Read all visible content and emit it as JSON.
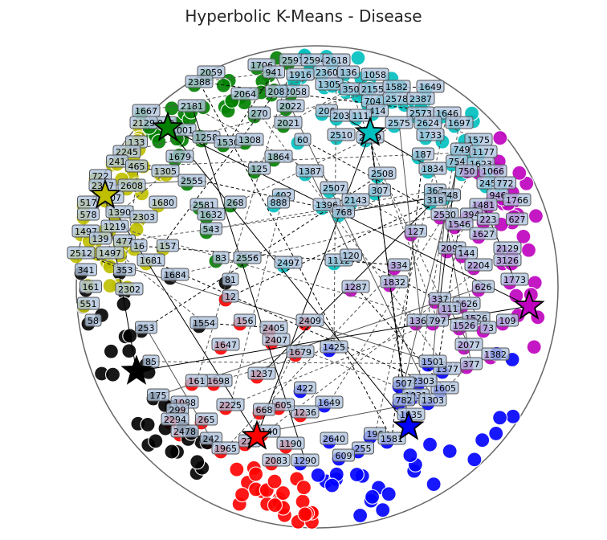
{
  "chart_data": {
    "type": "scatter",
    "title": "Hyperbolic K-Means - Disease",
    "xlabel": "",
    "ylabel": "",
    "xlim": [
      -1.0,
      1.0
    ],
    "ylim": [
      -1.0,
      1.0
    ],
    "grid": false,
    "legend": "none",
    "clusters": [
      {
        "color": "#008000",
        "centroid": [
          -0.62,
          0.66
        ]
      },
      {
        "color": "#00BFBF",
        "centroid": [
          0.22,
          0.64
        ]
      },
      {
        "color": "#BFBF00",
        "centroid": [
          -0.88,
          0.38
        ]
      },
      {
        "color": "#BF00BF",
        "centroid": [
          0.88,
          -0.08
        ]
      },
      {
        "color": "#0000FF",
        "centroid": [
          0.38,
          -0.58
        ]
      },
      {
        "color": "#FF0000",
        "centroid": [
          -0.25,
          -0.62
        ]
      },
      {
        "color": "#000000",
        "centroid": [
          -0.75,
          -0.35
        ]
      }
    ],
    "point_labels": [
      {
        "text": "2591",
        "x": -0.1,
        "y": 0.94,
        "c": 0
      },
      {
        "text": "2594",
        "x": -0.01,
        "y": 0.94,
        "c": 0
      },
      {
        "text": "2618",
        "x": 0.08,
        "y": 0.94,
        "c": 1
      },
      {
        "text": "1706",
        "x": -0.23,
        "y": 0.92,
        "c": 0
      },
      {
        "text": "2360",
        "x": 0.04,
        "y": 0.89,
        "c": 1
      },
      {
        "text": "136",
        "x": 0.13,
        "y": 0.89,
        "c": 1
      },
      {
        "text": "1058",
        "x": 0.24,
        "y": 0.88,
        "c": 1
      },
      {
        "text": "1916",
        "x": -0.07,
        "y": 0.88,
        "c": 0
      },
      {
        "text": "941",
        "x": -0.18,
        "y": 0.89,
        "c": 0
      },
      {
        "text": "2059",
        "x": -0.44,
        "y": 0.89,
        "c": 0
      },
      {
        "text": "2388",
        "x": -0.49,
        "y": 0.85,
        "c": 0
      },
      {
        "text": "1305",
        "x": 0.05,
        "y": 0.84,
        "c": 1
      },
      {
        "text": "350",
        "x": 0.14,
        "y": 0.82,
        "c": 1
      },
      {
        "text": "2155",
        "x": 0.23,
        "y": 0.82,
        "c": 1
      },
      {
        "text": "1582",
        "x": 0.33,
        "y": 0.83,
        "c": 1
      },
      {
        "text": "1649",
        "x": 0.47,
        "y": 0.83,
        "c": 1
      },
      {
        "text": "2058",
        "x": -0.09,
        "y": 0.81,
        "c": 0
      },
      {
        "text": "208",
        "x": -0.17,
        "y": 0.81,
        "c": 0
      },
      {
        "text": "2064",
        "x": -0.3,
        "y": 0.8,
        "c": 0
      },
      {
        "text": "2578",
        "x": 0.33,
        "y": 0.78,
        "c": 1
      },
      {
        "text": "2387",
        "x": 0.43,
        "y": 0.78,
        "c": 1
      },
      {
        "text": "704",
        "x": 0.23,
        "y": 0.77,
        "c": 1
      },
      {
        "text": "414",
        "x": 0.25,
        "y": 0.73,
        "c": 1
      },
      {
        "text": "2573",
        "x": 0.43,
        "y": 0.72,
        "c": 1
      },
      {
        "text": "1646",
        "x": 0.54,
        "y": 0.72,
        "c": 1
      },
      {
        "text": "2022",
        "x": -0.11,
        "y": 0.75,
        "c": 0
      },
      {
        "text": "206",
        "x": 0.04,
        "y": 0.73,
        "c": 1
      },
      {
        "text": "203",
        "x": 0.1,
        "y": 0.71,
        "c": 1
      },
      {
        "text": "111",
        "x": 0.18,
        "y": 0.71,
        "c": 1
      },
      {
        "text": "2575",
        "x": 0.34,
        "y": 0.68,
        "c": 1
      },
      {
        "text": "2624",
        "x": 0.46,
        "y": 0.68,
        "c": 1
      },
      {
        "text": "1697",
        "x": 0.59,
        "y": 0.68,
        "c": 1
      },
      {
        "text": "270",
        "x": -0.24,
        "y": 0.72,
        "c": 0
      },
      {
        "text": "2021",
        "x": -0.12,
        "y": 0.68,
        "c": 0
      },
      {
        "text": "1733",
        "x": 0.47,
        "y": 0.63,
        "c": 1
      },
      {
        "text": "2510",
        "x": 0.1,
        "y": 0.63,
        "c": 1
      },
      {
        "text": "2509",
        "x": 0.22,
        "y": 0.62,
        "c": 1
      },
      {
        "text": "1575",
        "x": 0.67,
        "y": 0.61,
        "c": 1
      },
      {
        "text": "1667",
        "x": -0.71,
        "y": 0.73,
        "c": 0
      },
      {
        "text": "2181",
        "x": -0.52,
        "y": 0.75,
        "c": 0
      },
      {
        "text": "1001",
        "x": -0.56,
        "y": 0.65,
        "c": 0
      },
      {
        "text": "2009",
        "x": -0.64,
        "y": 0.68,
        "c": 0
      },
      {
        "text": "2129",
        "x": -0.72,
        "y": 0.68,
        "c": 2
      },
      {
        "text": "1258",
        "x": -0.46,
        "y": 0.62,
        "c": 0
      },
      {
        "text": "1530",
        "x": -0.37,
        "y": 0.6,
        "c": 0
      },
      {
        "text": "1308",
        "x": -0.28,
        "y": 0.61,
        "c": 0
      },
      {
        "text": "60",
        "x": -0.06,
        "y": 0.61,
        "c": 1
      },
      {
        "text": "749",
        "x": 0.6,
        "y": 0.57,
        "c": 1
      },
      {
        "text": "1177",
        "x": 0.69,
        "y": 0.56,
        "c": 1
      },
      {
        "text": "133",
        "x": -0.75,
        "y": 0.6,
        "c": 2
      },
      {
        "text": "2245",
        "x": -0.79,
        "y": 0.56,
        "c": 2
      },
      {
        "text": "1679",
        "x": -0.57,
        "y": 0.54,
        "c": 0
      },
      {
        "text": "1864",
        "x": -0.16,
        "y": 0.54,
        "c": 0
      },
      {
        "text": "187",
        "x": 0.44,
        "y": 0.55,
        "c": 1
      },
      {
        "text": "754",
        "x": 0.58,
        "y": 0.52,
        "c": 1
      },
      {
        "text": "1623",
        "x": 0.68,
        "y": 0.51,
        "c": 1
      },
      {
        "text": "241",
        "x": -0.83,
        "y": 0.52,
        "c": 2
      },
      {
        "text": "465",
        "x": -0.75,
        "y": 0.5,
        "c": 2
      },
      {
        "text": "1305",
        "x": -0.63,
        "y": 0.48,
        "c": 2
      },
      {
        "text": "125",
        "x": -0.24,
        "y": 0.49,
        "c": 0
      },
      {
        "text": "1387",
        "x": -0.03,
        "y": 0.48,
        "c": 1
      },
      {
        "text": "2508",
        "x": 0.27,
        "y": 0.47,
        "c": 1
      },
      {
        "text": "1834",
        "x": 0.48,
        "y": 0.49,
        "c": 1
      },
      {
        "text": "750",
        "x": 0.62,
        "y": 0.48,
        "c": 1
      },
      {
        "text": "1066",
        "x": 0.73,
        "y": 0.48,
        "c": 1
      },
      {
        "text": "722",
        "x": -0.9,
        "y": 0.46,
        "c": 2
      },
      {
        "text": "2347",
        "x": -0.89,
        "y": 0.42,
        "c": 2
      },
      {
        "text": "2608",
        "x": -0.77,
        "y": 0.42,
        "c": 2
      },
      {
        "text": "2555",
        "x": -0.52,
        "y": 0.44,
        "c": 0
      },
      {
        "text": "2507",
        "x": 0.07,
        "y": 0.41,
        "c": 1
      },
      {
        "text": "307",
        "x": 0.26,
        "y": 0.4,
        "c": 1
      },
      {
        "text": "2451",
        "x": 0.72,
        "y": 0.43,
        "c": 1
      },
      {
        "text": "772",
        "x": 0.78,
        "y": 0.43,
        "c": 1
      },
      {
        "text": "367",
        "x": 0.49,
        "y": 0.4,
        "c": 1
      },
      {
        "text": "748",
        "x": 0.55,
        "y": 0.38,
        "c": 1
      },
      {
        "text": "946",
        "x": 0.75,
        "y": 0.38,
        "c": 3
      },
      {
        "text": "1766",
        "x": 0.83,
        "y": 0.36,
        "c": 3
      },
      {
        "text": "402",
        "x": -0.14,
        "y": 0.38,
        "c": 1
      },
      {
        "text": "888",
        "x": -0.16,
        "y": 0.35,
        "c": 1
      },
      {
        "text": "1396",
        "x": 0.04,
        "y": 0.34,
        "c": 1
      },
      {
        "text": "2143",
        "x": 0.16,
        "y": 0.36,
        "c": 1
      },
      {
        "text": "318",
        "x": 0.49,
        "y": 0.36,
        "c": 1
      },
      {
        "text": "1481",
        "x": 0.69,
        "y": 0.34,
        "c": 3
      },
      {
        "text": "517",
        "x": -0.95,
        "y": 0.35,
        "c": 2
      },
      {
        "text": "2607",
        "x": -0.86,
        "y": 0.37,
        "c": 2
      },
      {
        "text": "1680",
        "x": -0.64,
        "y": 0.35,
        "c": 2
      },
      {
        "text": "2581",
        "x": -0.47,
        "y": 0.34,
        "c": 0
      },
      {
        "text": "268",
        "x": -0.34,
        "y": 0.35,
        "c": 0
      },
      {
        "text": "768",
        "x": 0.11,
        "y": 0.31,
        "c": 1
      },
      {
        "text": "2530",
        "x": 0.53,
        "y": 0.3,
        "c": 3
      },
      {
        "text": "394",
        "x": 0.64,
        "y": 0.3,
        "c": 3
      },
      {
        "text": "578",
        "x": -0.95,
        "y": 0.3,
        "c": 2
      },
      {
        "text": "1390",
        "x": -0.82,
        "y": 0.31,
        "c": 2
      },
      {
        "text": "2303",
        "x": -0.72,
        "y": 0.29,
        "c": 2
      },
      {
        "text": "1632",
        "x": -0.44,
        "y": 0.3,
        "c": 0
      },
      {
        "text": "1546",
        "x": 0.59,
        "y": 0.26,
        "c": 3
      },
      {
        "text": "223",
        "x": 0.71,
        "y": 0.28,
        "c": 3
      },
      {
        "text": "627",
        "x": 0.83,
        "y": 0.28,
        "c": 3
      },
      {
        "text": "1219",
        "x": -0.84,
        "y": 0.25,
        "c": 2
      },
      {
        "text": "543",
        "x": -0.44,
        "y": 0.24,
        "c": 0
      },
      {
        "text": "127",
        "x": 0.41,
        "y": 0.23,
        "c": 3
      },
      {
        "text": "1627",
        "x": 0.69,
        "y": 0.22,
        "c": 3
      },
      {
        "text": "1497",
        "x": -0.96,
        "y": 0.23,
        "c": 2
      },
      {
        "text": "139",
        "x": -0.9,
        "y": 0.2,
        "c": 2
      },
      {
        "text": "477",
        "x": -0.8,
        "y": 0.19,
        "c": 2
      },
      {
        "text": "16",
        "x": -0.74,
        "y": 0.17,
        "c": 2
      },
      {
        "text": "157",
        "x": -0.62,
        "y": 0.17,
        "c": 2
      },
      {
        "text": "2092",
        "x": 0.56,
        "y": 0.16,
        "c": 3
      },
      {
        "text": "144",
        "x": 0.62,
        "y": 0.14,
        "c": 3
      },
      {
        "text": "2129",
        "x": 0.79,
        "y": 0.16,
        "c": 3
      },
      {
        "text": "2512",
        "x": -0.98,
        "y": 0.14,
        "c": 2
      },
      {
        "text": "1497",
        "x": -0.86,
        "y": 0.14,
        "c": 2
      },
      {
        "text": "2556",
        "x": -0.29,
        "y": 0.12,
        "c": 0
      },
      {
        "text": "83",
        "x": -0.4,
        "y": 0.12,
        "c": 0
      },
      {
        "text": "1112",
        "x": 0.09,
        "y": 0.11,
        "c": 1
      },
      {
        "text": "120",
        "x": 0.14,
        "y": 0.13,
        "c": 1
      },
      {
        "text": "2497",
        "x": -0.12,
        "y": 0.1,
        "c": 1
      },
      {
        "text": "334",
        "x": 0.34,
        "y": 0.09,
        "c": 3
      },
      {
        "text": "2204",
        "x": 0.67,
        "y": 0.09,
        "c": 3
      },
      {
        "text": "3126",
        "x": 0.79,
        "y": 0.11,
        "c": 3
      },
      {
        "text": "1681",
        "x": -0.69,
        "y": 0.11,
        "c": 2
      },
      {
        "text": "341",
        "x": -0.96,
        "y": 0.07,
        "c": 6
      },
      {
        "text": "353",
        "x": -0.8,
        "y": 0.07,
        "c": 6
      },
      {
        "text": "1684",
        "x": -0.59,
        "y": 0.05,
        "c": 6
      },
      {
        "text": "1773",
        "x": 0.82,
        "y": 0.03,
        "c": 3
      },
      {
        "text": "1832",
        "x": 0.32,
        "y": 0.02,
        "c": 3
      },
      {
        "text": "1287",
        "x": 0.16,
        "y": 0.0,
        "c": 3
      },
      {
        "text": "161",
        "x": -0.94,
        "y": 0.0,
        "c": 6
      },
      {
        "text": "2302",
        "x": -0.78,
        "y": -0.01,
        "c": 6
      },
      {
        "text": "81",
        "x": -0.36,
        "y": 0.03,
        "c": 6
      },
      {
        "text": "626",
        "x": 0.69,
        "y": 0.0,
        "c": 3
      },
      {
        "text": "1626",
        "x": 0.62,
        "y": -0.07,
        "c": 3
      },
      {
        "text": "337",
        "x": 0.51,
        "y": -0.05,
        "c": 3
      },
      {
        "text": "551",
        "x": -0.95,
        "y": -0.07,
        "c": 6
      },
      {
        "text": "12",
        "x": -0.36,
        "y": -0.04,
        "c": 5
      },
      {
        "text": "111",
        "x": 0.55,
        "y": -0.09,
        "c": 3
      },
      {
        "text": "1526",
        "x": 0.66,
        "y": -0.13,
        "c": 3
      },
      {
        "text": "109",
        "x": 0.79,
        "y": -0.14,
        "c": 3
      },
      {
        "text": "1369",
        "x": 0.43,
        "y": -0.14,
        "c": 3
      },
      {
        "text": "797",
        "x": 0.5,
        "y": -0.14,
        "c": 3
      },
      {
        "text": "1526",
        "x": 0.61,
        "y": -0.16,
        "c": 3
      },
      {
        "text": "73",
        "x": 0.71,
        "y": -0.17,
        "c": 3
      },
      {
        "text": "58",
        "x": -0.93,
        "y": -0.14,
        "c": 6
      },
      {
        "text": "156",
        "x": -0.3,
        "y": -0.14,
        "c": 5
      },
      {
        "text": "1554",
        "x": -0.47,
        "y": -0.15,
        "c": 6
      },
      {
        "text": "2405",
        "x": -0.18,
        "y": -0.17,
        "c": 5
      },
      {
        "text": "2409",
        "x": -0.03,
        "y": -0.14,
        "c": 5
      },
      {
        "text": "253",
        "x": -0.71,
        "y": -0.17,
        "c": 6
      },
      {
        "text": "2077",
        "x": 0.63,
        "y": -0.24,
        "c": 3
      },
      {
        "text": "1382",
        "x": 0.74,
        "y": -0.28,
        "c": 3
      },
      {
        "text": "1647",
        "x": -0.38,
        "y": -0.24,
        "c": 5
      },
      {
        "text": "2407",
        "x": -0.17,
        "y": -0.22,
        "c": 5
      },
      {
        "text": "1425",
        "x": 0.07,
        "y": -0.25,
        "c": 4
      },
      {
        "text": "1679",
        "x": -0.07,
        "y": -0.27,
        "c": 5
      },
      {
        "text": "1377",
        "x": 0.54,
        "y": -0.34,
        "c": 4
      },
      {
        "text": "1501",
        "x": 0.48,
        "y": -0.31,
        "c": 4
      },
      {
        "text": "377",
        "x": 0.64,
        "y": -0.32,
        "c": 3
      },
      {
        "text": "85",
        "x": -0.69,
        "y": -0.31,
        "c": 6
      },
      {
        "text": "1237",
        "x": -0.23,
        "y": -0.36,
        "c": 5
      },
      {
        "text": "1698",
        "x": -0.41,
        "y": -0.39,
        "c": 5
      },
      {
        "text": "161",
        "x": -0.5,
        "y": -0.39,
        "c": 5
      },
      {
        "text": "422",
        "x": -0.05,
        "y": -0.42,
        "c": 4
      },
      {
        "text": "1605",
        "x": 0.53,
        "y": -0.42,
        "c": 4
      },
      {
        "text": "2303",
        "x": 0.44,
        "y": -0.39,
        "c": 4
      },
      {
        "text": "507",
        "x": 0.36,
        "y": -0.4,
        "c": 4
      },
      {
        "text": "1031",
        "x": 0.41,
        "y": -0.45,
        "c": 4
      },
      {
        "text": "1303",
        "x": 0.48,
        "y": -0.47,
        "c": 4
      },
      {
        "text": "175",
        "x": -0.66,
        "y": -0.45,
        "c": 6
      },
      {
        "text": "1088",
        "x": -0.55,
        "y": -0.48,
        "c": 5
      },
      {
        "text": "1649",
        "x": 0.05,
        "y": -0.48,
        "c": 4
      },
      {
        "text": "782",
        "x": 0.36,
        "y": -0.47,
        "c": 4
      },
      {
        "text": "1236",
        "x": -0.05,
        "y": -0.52,
        "c": 5
      },
      {
        "text": "605",
        "x": -0.14,
        "y": -0.49,
        "c": 5
      },
      {
        "text": "668",
        "x": -0.22,
        "y": -0.51,
        "c": 5
      },
      {
        "text": "2225",
        "x": -0.36,
        "y": -0.49,
        "c": 5
      },
      {
        "text": "1635",
        "x": 0.39,
        "y": -0.53,
        "c": 4
      },
      {
        "text": "299",
        "x": -0.58,
        "y": -0.51,
        "c": 6
      },
      {
        "text": "2294",
        "x": -0.59,
        "y": -0.55,
        "c": 5
      },
      {
        "text": "265",
        "x": -0.46,
        "y": -0.55,
        "c": 5
      },
      {
        "text": "2478",
        "x": -0.55,
        "y": -0.6,
        "c": 5
      },
      {
        "text": "1140",
        "x": -0.21,
        "y": -0.6,
        "c": 5
      },
      {
        "text": "2640",
        "x": 0.07,
        "y": -0.63,
        "c": 4
      },
      {
        "text": "196",
        "x": 0.24,
        "y": -0.61,
        "c": 4
      },
      {
        "text": "1581",
        "x": 0.31,
        "y": -0.63,
        "c": 4
      },
      {
        "text": "242",
        "x": -0.44,
        "y": -0.63,
        "c": 5
      },
      {
        "text": "1965",
        "x": -0.38,
        "y": -0.67,
        "c": 5
      },
      {
        "text": "229",
        "x": -0.28,
        "y": -0.64,
        "c": 5
      },
      {
        "text": "1190",
        "x": -0.11,
        "y": -0.65,
        "c": 5
      },
      {
        "text": "255",
        "x": 0.19,
        "y": -0.67,
        "c": 4
      },
      {
        "text": "2083",
        "x": -0.17,
        "y": -0.72,
        "c": 5
      },
      {
        "text": "1290",
        "x": -0.05,
        "y": -0.72,
        "c": 4
      },
      {
        "text": "609",
        "x": 0.11,
        "y": -0.7,
        "c": 4
      }
    ]
  }
}
